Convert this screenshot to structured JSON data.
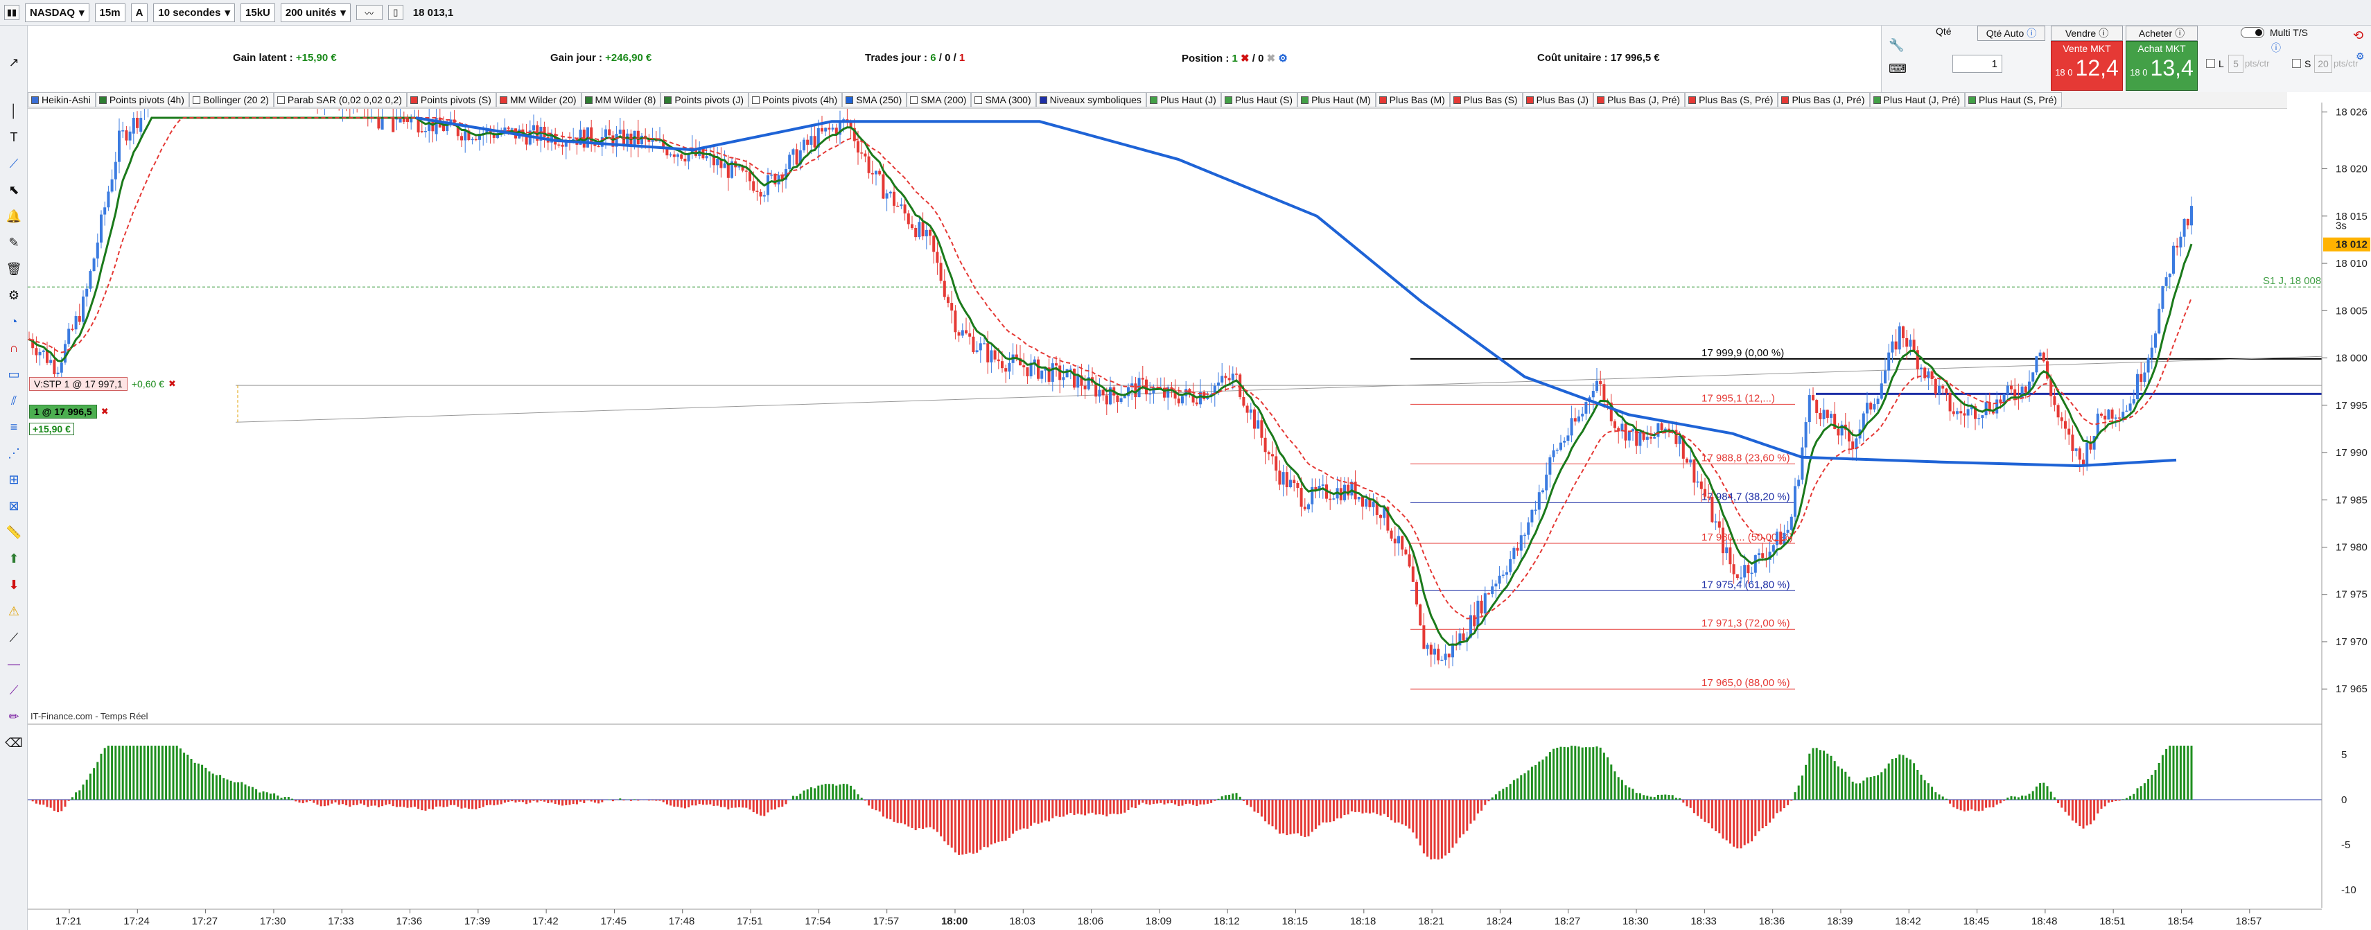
{
  "toolbar": {
    "instrument": "NASDAQ",
    "timeframe": "15m",
    "mode": "A",
    "interval": "10 secondes",
    "volume": "15kU",
    "units": "200 unités",
    "price": "18 013,1"
  },
  "info": {
    "gain_latent_label": "Gain latent :",
    "gain_latent_value": "+15,90 €",
    "gain_jour_label": "Gain jour :",
    "gain_jour_value": "+246,90 €",
    "trades_label": "Trades jour :",
    "trades_a": "6",
    "trades_b": "0",
    "trades_c": "1",
    "position_label": "Position :",
    "position_a": "1",
    "position_b": "0",
    "cout_label": "Coût unitaire :",
    "cout_value": "17 996,5 €"
  },
  "order": {
    "qte_label": "Qté",
    "qte_auto": "Qté Auto",
    "qte_value": "1",
    "vendre": "Vendre",
    "acheter": "Acheter",
    "vente_mkt": "Vente MKT",
    "achat_mkt": "Achat MKT",
    "vente_prefix": "18 0",
    "vente_big": "12,4",
    "achat_prefix": "18 0",
    "achat_big": "13,4",
    "multi_ts": "Multi T/S",
    "l_label": "L",
    "l_value": "5",
    "l_unit": "pts/ctr",
    "s_label": "S",
    "s_value": "20",
    "s_unit": "pts/ctr",
    "sell_color": "#e53935",
    "buy_color": "#43a047"
  },
  "indicators": [
    {
      "label": "Heikin-Ashi",
      "color": "#3b6fd6"
    },
    {
      "label": "Points pivots (4h)",
      "color": "#2e7d32"
    },
    {
      "label": "Bollinger (20 2)",
      "color": "#ffffff"
    },
    {
      "label": "Parab SAR (0,02 0,02 0,2)",
      "color": "#ffffff"
    },
    {
      "label": "Points pivots (S)",
      "color": "#e53935"
    },
    {
      "label": "MM Wilder (20)",
      "color": "#e53935"
    },
    {
      "label": "MM Wilder (8)",
      "color": "#2e7d32"
    },
    {
      "label": "Points pivots (J)",
      "color": "#2e7d32"
    },
    {
      "label": "Points pivots (4h)",
      "color": "#ffffff"
    },
    {
      "label": "SMA (250)",
      "color": "#1e63d6"
    },
    {
      "label": "SMA (200)",
      "color": "#ffffff"
    },
    {
      "label": "SMA (300)",
      "color": "#ffffff"
    },
    {
      "label": "Niveaux symboliques",
      "color": "#1e2fa6"
    },
    {
      "label": "Plus Haut (J)",
      "color": "#43a047"
    },
    {
      "label": "Plus Haut (S)",
      "color": "#43a047"
    },
    {
      "label": "Plus Haut (M)",
      "color": "#43a047"
    },
    {
      "label": "Plus Bas (M)",
      "color": "#e53935"
    },
    {
      "label": "Plus Bas (S)",
      "color": "#e53935"
    },
    {
      "label": "Plus Bas (J)",
      "color": "#e53935"
    },
    {
      "label": "Plus Bas (J, Pré)",
      "color": "#e53935"
    },
    {
      "label": "Plus Bas (S, Pré)",
      "color": "#e53935"
    },
    {
      "label": "Plus Bas (J, Pré)",
      "color": "#e53935"
    },
    {
      "label": "Plus Haut (J, Pré)",
      "color": "#43a047"
    },
    {
      "label": "Plus Haut (S, Pré)",
      "color": "#43a047"
    }
  ],
  "chart_data": {
    "type": "candlestick",
    "source_label": "IT-Finance.com - Temps Réel",
    "price_ticks": [
      "18 026",
      "18 020",
      "18 015",
      "18 010",
      "18 005",
      "18 000",
      "17 995",
      "17 990",
      "17 985",
      "17 980",
      "17 975",
      "17 970",
      "17 965"
    ],
    "price_tick_values": [
      18026,
      18020,
      18015,
      18010,
      18005,
      18000,
      17995,
      17990,
      17985,
      17980,
      17975,
      17970,
      17965
    ],
    "price_marker": "18 012",
    "osc_ticks": [
      "5",
      "0",
      "-5",
      "-10"
    ],
    "time_ticks": [
      "17:21",
      "17:24",
      "17:27",
      "17:30",
      "17:33",
      "17:36",
      "17:39",
      "17:42",
      "17:45",
      "17:48",
      "17:51",
      "17:54",
      "17:57",
      "18:00",
      "18:03",
      "18:06",
      "18:09",
      "18:12",
      "18:15",
      "18:18",
      "18:21",
      "18:24",
      "18:27",
      "18:30",
      "18:33",
      "18:36",
      "18:39",
      "18:42",
      "18:45",
      "18:48",
      "18:51",
      "18:54",
      "18:57"
    ],
    "pivot_label": "S1 J, 18 008",
    "pivot_value": 18007.5,
    "fibonacci": [
      {
        "label": "17 999,9 (0,00 %)",
        "value": 17999.9,
        "color": "#000000"
      },
      {
        "label": "17 995,1 (12,...)",
        "value": 17995.1,
        "color": "#e53935"
      },
      {
        "label": "17 988,8 (23,60 %)",
        "value": 17988.8,
        "color": "#e53935"
      },
      {
        "label": "17 984,7 (38,20 %)",
        "value": 17984.7,
        "color": "#1e2fa6"
      },
      {
        "label": "17 980,... (50,00 %)",
        "value": 17980.4,
        "color": "#e53935"
      },
      {
        "label": "17 975,4 (61,80 %)",
        "value": 17975.4,
        "color": "#1e2fa6"
      },
      {
        "label": "17 971,3 (72,00 %)",
        "value": 17971.3,
        "color": "#e53935"
      },
      {
        "label": "17 965,0 (88,00 %)",
        "value": 17965.0,
        "color": "#e53935"
      }
    ],
    "stop_order": {
      "label": "V:STP 1 @ 17 997,1",
      "gain": "+0,60 €",
      "value": 17997.1
    },
    "position_line": {
      "label": "1 @ 17 996,5",
      "gain": "+15,90 €",
      "value": 17996.5
    },
    "side_price_labels": [
      "3s"
    ]
  }
}
